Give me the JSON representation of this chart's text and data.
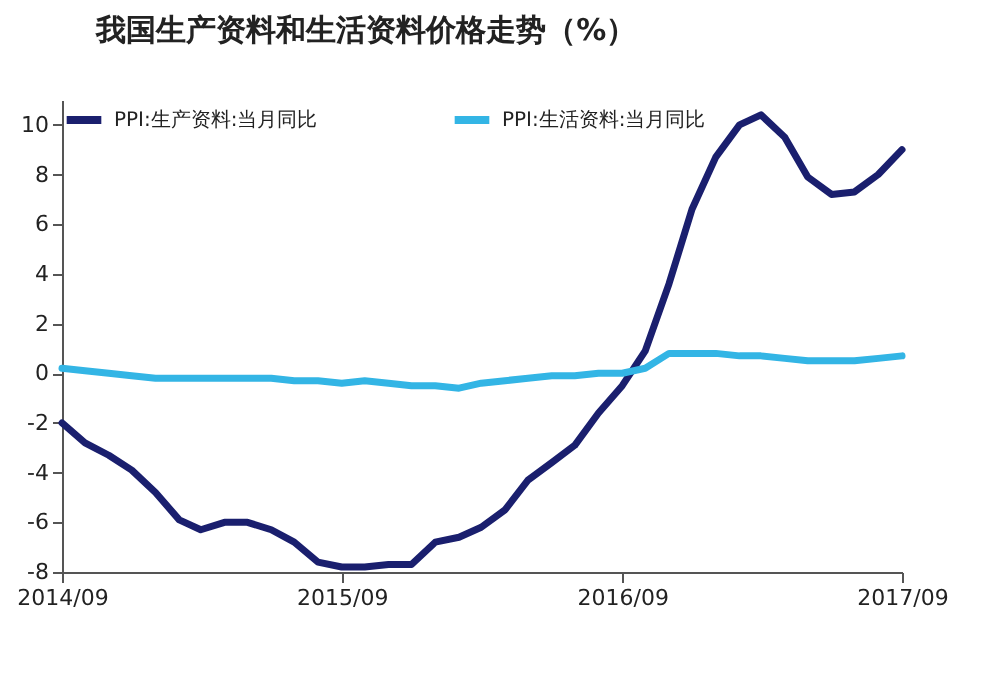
{
  "chart_data": {
    "type": "line",
    "title": "我国生产资料和生活资料价格走势（%）",
    "x": [
      "2014-09",
      "2014-10",
      "2014-11",
      "2014-12",
      "2015-01",
      "2015-02",
      "2015-03",
      "2015-04",
      "2015-05",
      "2015-06",
      "2015-07",
      "2015-08",
      "2015-09",
      "2015-10",
      "2015-11",
      "2015-12",
      "2016-01",
      "2016-02",
      "2016-03",
      "2016-04",
      "2016-05",
      "2016-06",
      "2016-07",
      "2016-08",
      "2016-09",
      "2016-10",
      "2016-11",
      "2016-12",
      "2017-01",
      "2017-02",
      "2017-03",
      "2017-04",
      "2017-05",
      "2017-06",
      "2017-07",
      "2017-08",
      "2017-09"
    ],
    "series": [
      {
        "name": "PPI:生产资料:当月同比",
        "color": "#1a1f6e",
        "values": [
          -2.0,
          -2.8,
          -3.3,
          -3.9,
          -4.8,
          -5.9,
          -6.3,
          -6.0,
          -6.0,
          -6.3,
          -6.8,
          -7.6,
          -7.8,
          -7.8,
          -7.7,
          -7.7,
          -6.8,
          -6.6,
          -6.2,
          -5.5,
          -4.3,
          -3.6,
          -2.9,
          -1.6,
          -0.5,
          0.9,
          3.6,
          6.6,
          8.7,
          10.0,
          10.4,
          9.5,
          7.9,
          7.2,
          7.3,
          8.0,
          9.0
        ]
      },
      {
        "name": "PPI:生活资料:当月同比",
        "color": "#33b5e5",
        "values": [
          0.2,
          0.1,
          0.0,
          -0.1,
          -0.2,
          -0.2,
          -0.2,
          -0.2,
          -0.2,
          -0.2,
          -0.3,
          -0.3,
          -0.4,
          -0.3,
          -0.4,
          -0.5,
          -0.5,
          -0.6,
          -0.4,
          -0.3,
          -0.2,
          -0.1,
          -0.1,
          0.0,
          0.0,
          0.2,
          0.8,
          0.8,
          0.8,
          0.7,
          0.7,
          0.6,
          0.5,
          0.5,
          0.5,
          0.6,
          0.7
        ]
      }
    ],
    "xlim": [
      "2014-09",
      "2017-09"
    ],
    "xticks": [
      {
        "value": "2014-09",
        "label": "2014/09"
      },
      {
        "value": "2015-09",
        "label": "2015/09"
      },
      {
        "value": "2016-09",
        "label": "2016/09"
      },
      {
        "value": "2017-09",
        "label": "2017/09"
      }
    ],
    "ylim": [
      -8,
      11
    ],
    "yticks": [
      -8,
      -6,
      -4,
      -2,
      0,
      2,
      4,
      6,
      8,
      10
    ],
    "grid": false,
    "legend": "top",
    "marker": "none",
    "line_style": "solid"
  }
}
